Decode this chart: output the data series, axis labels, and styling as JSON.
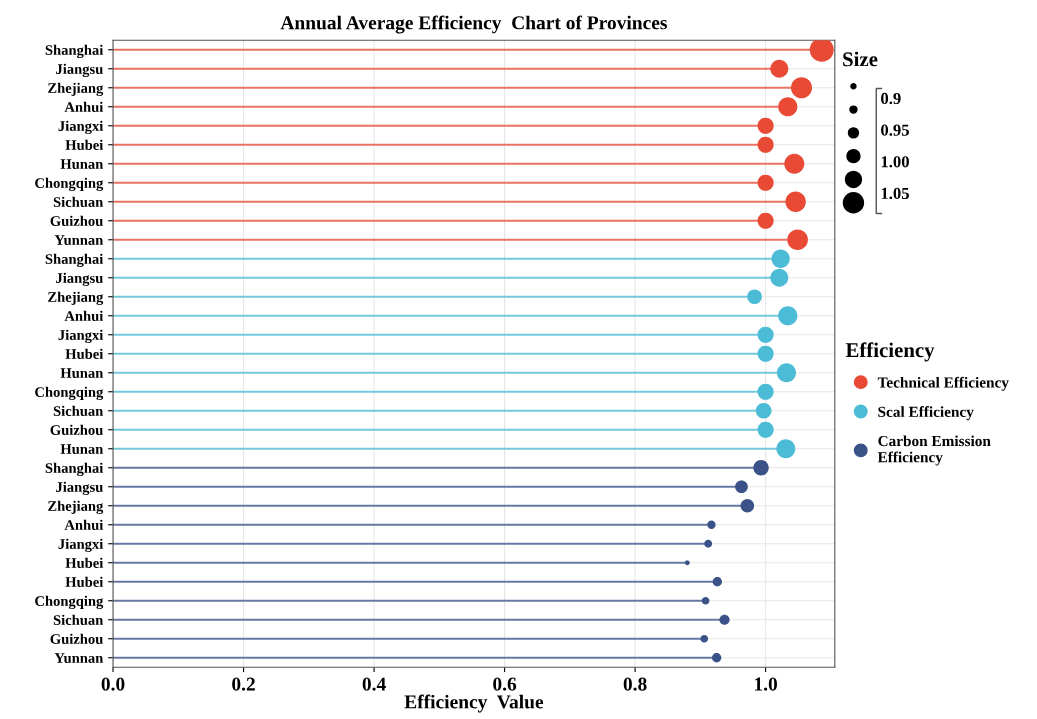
{
  "chart_data": {
    "type": "lollipop",
    "title": "Annual Average Efficiency  Chart of Provinces",
    "xlabel": "Efficiency  Value",
    "legend_title": "Efficiency",
    "annotations": [
      "Size",
      "0.9",
      "0.95",
      "1.00",
      "1.05"
    ],
    "categories": [
      "Shanghai",
      "Jiangsu",
      "Zhejiang",
      "Anhui",
      "Jiangxi",
      "Hubei",
      "Hunan",
      "Chongqing",
      "Sichuan",
      "Guizhou",
      "Yunnan",
      "Shanghai",
      "Jiangsu",
      "Zhejiang",
      "Anhui",
      "Jiangxi",
      "Hubei",
      "Hunan",
      "Chongqing",
      "Sichuan",
      "Guizhou",
      "Hunan",
      "Shanghai",
      "Jiangsu",
      "Zhejiang",
      "Anhui",
      "Jiangxi",
      "Hubei",
      "Hubei",
      "Chongqing",
      "Sichuan",
      "Guizhou",
      "Yunnan"
    ],
    "series": [
      {
        "name": "Technical Efficiency",
        "color": "#e84a35",
        "values": [
          1.086,
          1.021,
          1.055,
          1.034,
          1.0,
          1.0,
          1.044,
          1.0,
          1.046,
          1.0,
          1.049,
          null,
          null,
          null,
          null,
          null,
          null,
          null,
          null,
          null,
          null,
          null,
          null,
          null,
          null,
          null,
          null,
          null,
          null,
          null,
          null,
          null,
          null
        ],
        "sizes": [
          1,
          0.56,
          0.77,
          0.64,
          0.45,
          0.45,
          0.7,
          0.45,
          0.72,
          0.45,
          0.74,
          null,
          null,
          null,
          null,
          null,
          null,
          null,
          null,
          null,
          null,
          null,
          null,
          null,
          null,
          null,
          null,
          null,
          null,
          null,
          null,
          null,
          null
        ]
      },
      {
        "name": "Scal Efficiency",
        "color": "#4bbbd6",
        "values": [
          null,
          null,
          null,
          null,
          null,
          null,
          null,
          null,
          null,
          null,
          null,
          1.023,
          1.021,
          0.983,
          1.034,
          1.0,
          1.0,
          1.032,
          1.0,
          0.997,
          1.0,
          1.031,
          null,
          null,
          null,
          null,
          null,
          null,
          null,
          null,
          null,
          null,
          null
        ],
        "sizes": [
          null,
          null,
          null,
          null,
          null,
          null,
          null,
          null,
          null,
          null,
          null,
          0.58,
          0.56,
          0.37,
          0.64,
          0.45,
          0.45,
          0.63,
          0.45,
          0.43,
          0.45,
          0.62,
          null,
          null,
          null,
          null,
          null,
          null,
          null,
          null,
          null,
          null,
          null
        ]
      },
      {
        "name": "Carbon Emission\nEfficiency",
        "color": "#3a5288",
        "values": [
          null,
          null,
          null,
          null,
          null,
          null,
          null,
          null,
          null,
          null,
          null,
          null,
          null,
          null,
          null,
          null,
          null,
          null,
          null,
          null,
          null,
          null,
          0.993,
          0.963,
          0.972,
          0.917,
          0.912,
          0.88,
          0.926,
          0.908,
          0.937,
          0.906,
          0.925
        ],
        "sizes": [
          null,
          null,
          null,
          null,
          null,
          null,
          null,
          null,
          null,
          null,
          null,
          null,
          null,
          null,
          null,
          null,
          null,
          null,
          null,
          null,
          null,
          null,
          0.41,
          0.28,
          0.32,
          0.12,
          0.11,
          0.04,
          0.15,
          0.1,
          0.18,
          0.1,
          0.15
        ]
      }
    ],
    "xlim": [
      0,
      1.106
    ],
    "xticks": [
      {
        "value": 0,
        "label": "0.0"
      },
      {
        "value": 0.2,
        "label": "0.2"
      },
      {
        "value": 0.4,
        "label": "0.4"
      },
      {
        "value": 0.6,
        "label": "0.6"
      },
      {
        "value": 0.8,
        "label": "0.8"
      },
      {
        "value": 1.0,
        "label": "1.0"
      }
    ],
    "grid": true,
    "legend": "right",
    "marker": "circle",
    "orientation": "horizontal"
  }
}
